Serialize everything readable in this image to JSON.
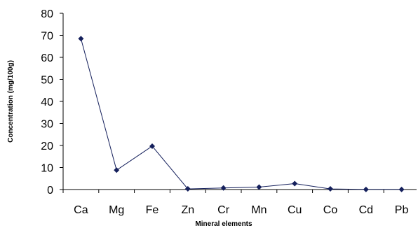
{
  "chart_data": {
    "type": "line",
    "title": "",
    "xlabel": "Mineral elements",
    "ylabel": "Concentration (mg/100g)",
    "categories": [
      "Ca",
      "Mg",
      "Fe",
      "Zn",
      "Cr",
      "Mn",
      "Cu",
      "Co",
      "Cd",
      "Pb"
    ],
    "values": [
      68.5,
      8.8,
      19.7,
      0.3,
      0.7,
      1.1,
      2.7,
      0.3,
      0.05,
      0.05
    ],
    "ylim": [
      0,
      80
    ],
    "yticks": [
      "0",
      "10",
      "20",
      "30",
      "40",
      "50",
      "60",
      "70",
      "80"
    ],
    "grid": false,
    "legend": "none",
    "colors": {
      "line": "#15205c",
      "marker": "#15205c",
      "axis": "#000000"
    }
  }
}
